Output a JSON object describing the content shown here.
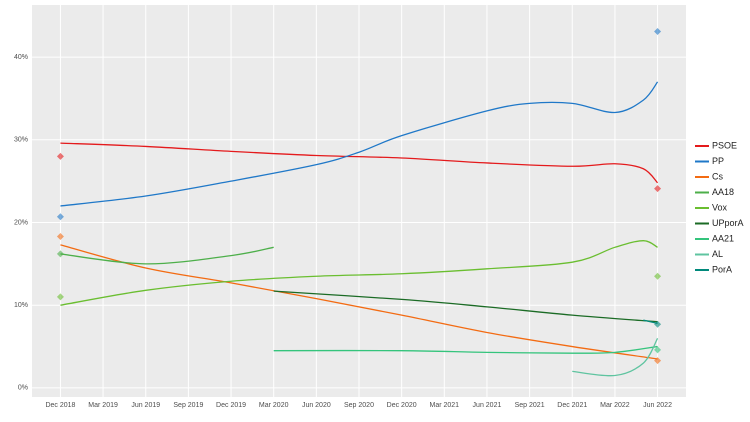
{
  "chart_data": {
    "type": "line",
    "xlim": [
      "2018-10",
      "2022-08"
    ],
    "xticks": [
      {
        "value": "2018-12",
        "label": "Dec 2018"
      },
      {
        "value": "2019-03",
        "label": "Mar 2019"
      },
      {
        "value": "2019-06",
        "label": "Jun 2019"
      },
      {
        "value": "2019-09",
        "label": "Sep 2019"
      },
      {
        "value": "2019-12",
        "label": "Dec 2019"
      },
      {
        "value": "2020-03",
        "label": "Mar 2020"
      },
      {
        "value": "2020-06",
        "label": "Jun 2020"
      },
      {
        "value": "2020-09",
        "label": "Sep 2020"
      },
      {
        "value": "2020-12",
        "label": "Dec 2020"
      },
      {
        "value": "2021-03",
        "label": "Mar 2021"
      },
      {
        "value": "2021-06",
        "label": "Jun 2021"
      },
      {
        "value": "2021-09",
        "label": "Sep 2021"
      },
      {
        "value": "2021-12",
        "label": "Dec 2021"
      },
      {
        "value": "2022-03",
        "label": "Mar 2022"
      },
      {
        "value": "2022-06",
        "label": "Jun 2022"
      }
    ],
    "ylim": [
      -1.1,
      46.3
    ],
    "yticks": [
      {
        "value": 0,
        "label": "0%"
      },
      {
        "value": 10,
        "label": "10%"
      },
      {
        "value": 20,
        "label": "20%"
      },
      {
        "value": 30,
        "label": "30%"
      },
      {
        "value": 40,
        "label": "40%"
      }
    ],
    "grid": true,
    "legend": "right",
    "elections_x": [
      "2018-12",
      "2022-06"
    ],
    "series": [
      {
        "name": "PSOE",
        "color": "#e41a1c",
        "x": [
          "2018-12",
          "2019-06",
          "2019-12",
          "2020-06",
          "2020-12",
          "2021-06",
          "2021-12",
          "2022-03",
          "2022-05",
          "2022-06"
        ],
        "values": [
          29.6,
          29.2,
          28.6,
          28.1,
          27.8,
          27.2,
          26.8,
          27.1,
          26.5,
          24.8
        ],
        "election_values": [
          28,
          24.1
        ]
      },
      {
        "name": "PP",
        "color": "#1f78c8",
        "x": [
          "2018-12",
          "2019-06",
          "2019-12",
          "2020-06",
          "2020-09",
          "2020-12",
          "2021-06",
          "2021-09",
          "2021-12",
          "2022-03",
          "2022-05",
          "2022-06"
        ],
        "values": [
          22,
          23.2,
          25,
          27,
          28.5,
          30.5,
          33.5,
          34.4,
          34.4,
          33.3,
          34.8,
          37
        ],
        "election_values": [
          20.7,
          43.1
        ]
      },
      {
        "name": "Cs",
        "color": "#f36b12",
        "x": [
          "2018-12",
          "2019-06",
          "2019-12",
          "2020-06",
          "2020-12",
          "2021-06",
          "2021-12",
          "2022-06"
        ],
        "values": [
          17.3,
          14.5,
          12.7,
          10.8,
          8.8,
          6.7,
          5,
          3.5
        ],
        "election_values": [
          18.3,
          3.3
        ]
      },
      {
        "name": "AA18",
        "color": "#4daf4a",
        "x": [
          "2018-12",
          "2019-06",
          "2019-12",
          "2020-03"
        ],
        "values": [
          16.2,
          15,
          16,
          17
        ],
        "election_values": [
          16.2,
          null
        ]
      },
      {
        "name": "Vox",
        "color": "#6abe30",
        "x": [
          "2018-12",
          "2019-06",
          "2019-12",
          "2020-06",
          "2020-12",
          "2021-06",
          "2021-12",
          "2022-03",
          "2022-05",
          "2022-06"
        ],
        "values": [
          10,
          11.8,
          12.9,
          13.5,
          13.8,
          14.4,
          15.2,
          17,
          17.8,
          17
        ],
        "election_values": [
          11,
          13.5
        ]
      },
      {
        "name": "UPporA",
        "color": "#1b6b25",
        "x": [
          "2020-03",
          "2020-12",
          "2021-06",
          "2021-12",
          "2022-06"
        ],
        "values": [
          11.7,
          10.7,
          9.8,
          8.8,
          8
        ],
        "election_values": [
          null,
          null
        ]
      },
      {
        "name": "AA21",
        "color": "#34c47c",
        "x": [
          "2020-03",
          "2020-12",
          "2021-06",
          "2021-12",
          "2022-03",
          "2022-06"
        ],
        "values": [
          4.5,
          4.5,
          4.3,
          4.2,
          4.3,
          5
        ],
        "election_values": [
          null,
          4.6
        ]
      },
      {
        "name": "AL",
        "color": "#5fc4a0",
        "x": [
          "2021-12",
          "2022-03",
          "2022-05",
          "2022-06"
        ],
        "values": [
          2,
          1.5,
          3,
          6
        ],
        "election_values": [
          null,
          null
        ]
      },
      {
        "name": "PorA",
        "color": "#00897b",
        "x": [
          "2022-05",
          "2022-06"
        ],
        "values": [
          8.2,
          7.8
        ],
        "election_values": [
          null,
          7.7
        ]
      }
    ]
  }
}
